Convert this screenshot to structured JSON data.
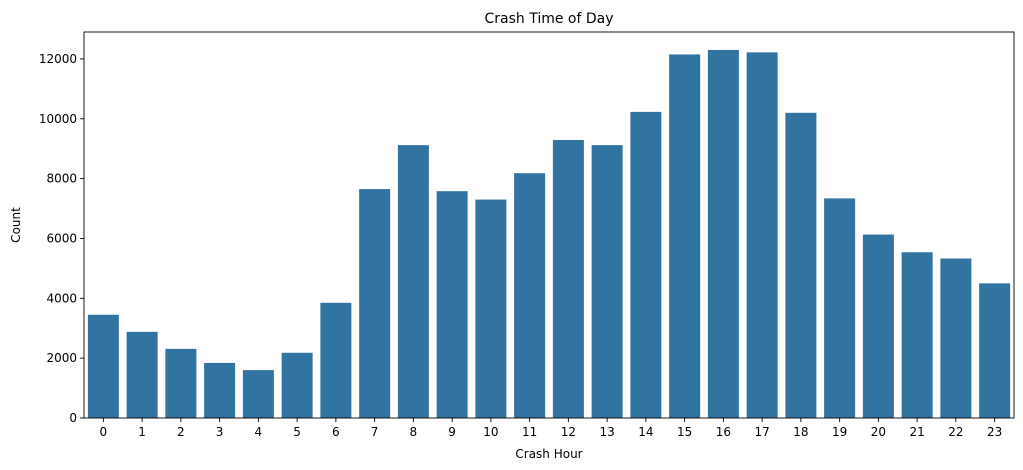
{
  "chart_data": {
    "type": "bar",
    "title": "Crash Time of Day",
    "xlabel": "Crash Hour",
    "ylabel": "Count",
    "categories": [
      "0",
      "1",
      "2",
      "3",
      "4",
      "5",
      "6",
      "7",
      "8",
      "9",
      "10",
      "11",
      "12",
      "13",
      "14",
      "15",
      "16",
      "17",
      "18",
      "19",
      "20",
      "21",
      "22",
      "23"
    ],
    "values": [
      3450,
      2880,
      2310,
      1840,
      1600,
      2180,
      3850,
      7650,
      9120,
      7580,
      7300,
      8180,
      9290,
      9120,
      10230,
      12150,
      12300,
      12220,
      10200,
      7340,
      6130,
      5540,
      5330,
      4500
    ],
    "yticks": [
      0,
      2000,
      4000,
      6000,
      8000,
      10000,
      12000
    ],
    "ylim": [
      0,
      12900
    ],
    "grid": false,
    "legend": "none",
    "bar_color": "#3274a1"
  }
}
